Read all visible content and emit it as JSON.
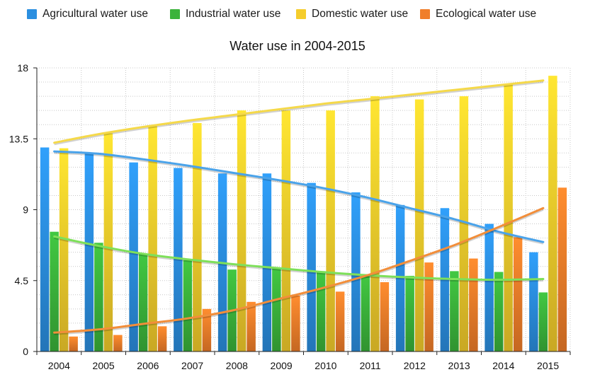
{
  "chart_data": {
    "type": "bar",
    "title": "Water use in 2004-2015",
    "xlabel": "",
    "ylabel": "",
    "ylim": [
      0,
      18
    ],
    "yticks": [
      "0",
      "4.5",
      "9",
      "13.5",
      "18"
    ],
    "grid": true,
    "legend_position": "top",
    "categories": [
      "2004",
      "2005",
      "2006",
      "2007",
      "2008",
      "2009",
      "2010",
      "2011",
      "2012",
      "2013",
      "2014",
      "2015"
    ],
    "series": [
      {
        "name": "Agricultural water use",
        "color": "#2b8fe0",
        "values": [
          12.95,
          12.6,
          12.0,
          11.65,
          11.3,
          11.3,
          10.7,
          10.1,
          9.3,
          9.1,
          8.1,
          6.3
        ]
      },
      {
        "name": "Industrial water use",
        "color": "#3bb33b",
        "values": [
          7.6,
          6.9,
          6.2,
          5.8,
          5.2,
          5.3,
          5.1,
          4.9,
          4.8,
          5.1,
          5.05,
          3.75
        ]
      },
      {
        "name": "Domestic water use",
        "color": "#f5cd2c",
        "values": [
          12.9,
          13.85,
          14.3,
          14.5,
          15.3,
          15.3,
          15.3,
          16.2,
          16.0,
          16.2,
          16.95,
          17.5
        ]
      },
      {
        "name": "Ecological water use",
        "color": "#f07e2a",
        "values": [
          0.95,
          1.05,
          1.6,
          2.7,
          3.15,
          3.55,
          3.8,
          4.4,
          5.65,
          5.9,
          7.25,
          10.4
        ]
      }
    ],
    "trendlines": [
      {
        "series": "Agricultural water use",
        "color": "#4aa3ea",
        "values": [
          12.7,
          12.55,
          12.2,
          11.8,
          11.35,
          10.9,
          10.4,
          9.8,
          9.1,
          8.4,
          7.6,
          6.95
        ]
      },
      {
        "series": "Industrial water use",
        "color": "#7ee05a",
        "values": [
          7.3,
          6.7,
          6.2,
          5.85,
          5.55,
          5.3,
          5.05,
          4.85,
          4.7,
          4.6,
          4.55,
          4.6
        ]
      },
      {
        "series": "Domestic water use",
        "color": "#f5d94a",
        "values": [
          13.25,
          13.8,
          14.25,
          14.65,
          15.0,
          15.35,
          15.7,
          16.0,
          16.3,
          16.6,
          16.9,
          17.2
        ]
      },
      {
        "series": "Ecological water use",
        "color": "#f28e3a",
        "values": [
          1.2,
          1.4,
          1.75,
          2.1,
          2.6,
          3.3,
          4.0,
          4.8,
          5.75,
          6.75,
          7.9,
          9.1
        ]
      }
    ]
  }
}
